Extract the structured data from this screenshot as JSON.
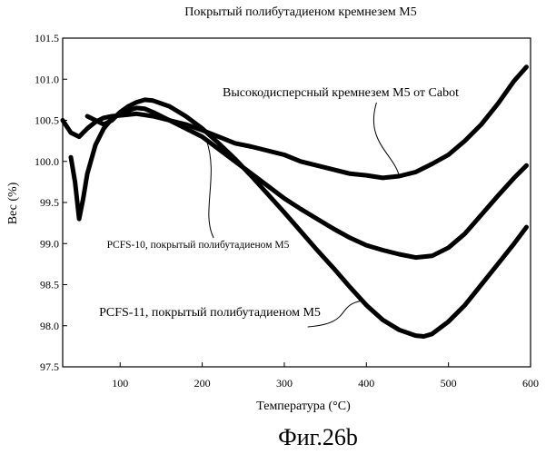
{
  "chart_data": {
    "type": "line",
    "title": "Покрытый полибутадиеном кремнезем М5",
    "xlabel": "Температура (°C)",
    "ylabel": "Вес (%)",
    "xlim": [
      30,
      600
    ],
    "ylim": [
      97.5,
      101.5
    ],
    "xticks": [
      100,
      200,
      300,
      400,
      500,
      600
    ],
    "yticks": [
      97.5,
      98.0,
      98.5,
      99.0,
      99.5,
      100.0,
      100.5,
      101.0,
      101.5
    ],
    "grid": false,
    "series": [
      {
        "name": "Высокодисперсный кремнезем М5 от Cabot",
        "x": [
          30,
          40,
          50,
          60,
          70,
          80,
          90,
          100,
          110,
          120,
          140,
          160,
          180,
          200,
          220,
          240,
          260,
          280,
          300,
          320,
          340,
          360,
          380,
          400,
          420,
          440,
          460,
          480,
          500,
          520,
          540,
          560,
          580,
          595
        ],
        "y": [
          100.5,
          100.35,
          100.3,
          100.4,
          100.48,
          100.53,
          100.55,
          100.56,
          100.57,
          100.58,
          100.55,
          100.5,
          100.45,
          100.38,
          100.3,
          100.22,
          100.18,
          100.13,
          100.08,
          100.0,
          99.95,
          99.9,
          99.85,
          99.83,
          99.8,
          99.82,
          99.87,
          99.97,
          100.08,
          100.25,
          100.45,
          100.7,
          100.98,
          101.15
        ]
      },
      {
        "name": "PCFS-10, покрытый полибутадиеном М5",
        "x": [
          40,
          45,
          50,
          55,
          60,
          70,
          80,
          90,
          100,
          110,
          120,
          130,
          140,
          160,
          180,
          200,
          220,
          240,
          260,
          280,
          300,
          320,
          340,
          360,
          380,
          400,
          420,
          440,
          460,
          480,
          500,
          520,
          540,
          560,
          580,
          595
        ],
        "y": [
          100.05,
          99.75,
          99.3,
          99.55,
          99.85,
          100.2,
          100.4,
          100.52,
          100.58,
          100.62,
          100.65,
          100.64,
          100.6,
          100.5,
          100.4,
          100.3,
          100.15,
          100.0,
          99.85,
          99.7,
          99.55,
          99.42,
          99.3,
          99.18,
          99.07,
          98.98,
          98.92,
          98.87,
          98.83,
          98.85,
          98.95,
          99.12,
          99.35,
          99.58,
          99.8,
          99.95
        ]
      },
      {
        "name": "PCFS-11, покрытый полибутадиеном М5",
        "x": [
          60,
          70,
          80,
          90,
          100,
          110,
          120,
          130,
          140,
          160,
          180,
          200,
          220,
          240,
          260,
          280,
          300,
          320,
          340,
          360,
          380,
          400,
          420,
          440,
          460,
          470,
          480,
          500,
          520,
          540,
          560,
          580,
          595
        ],
        "y": [
          100.55,
          100.5,
          100.45,
          100.5,
          100.6,
          100.67,
          100.72,
          100.75,
          100.74,
          100.67,
          100.55,
          100.4,
          100.22,
          100.03,
          99.82,
          99.6,
          99.38,
          99.15,
          98.92,
          98.7,
          98.47,
          98.25,
          98.07,
          97.95,
          97.88,
          97.87,
          97.9,
          98.05,
          98.25,
          98.5,
          98.75,
          99.0,
          99.2
        ]
      }
    ],
    "annotations": [
      {
        "text": "Высокодисперсный кремнезем М5 от Cabot",
        "series_index": 0,
        "arrow_x": 440
      },
      {
        "text": "PCFS-10, покрытый полибутадиеном М5",
        "series_index": 1,
        "arrow_x": 205
      },
      {
        "text": "PCFS-11, покрытый полибутадиеном М5",
        "series_index": 2,
        "arrow_x": 395
      }
    ]
  },
  "figure_label": "Фиг.26b"
}
